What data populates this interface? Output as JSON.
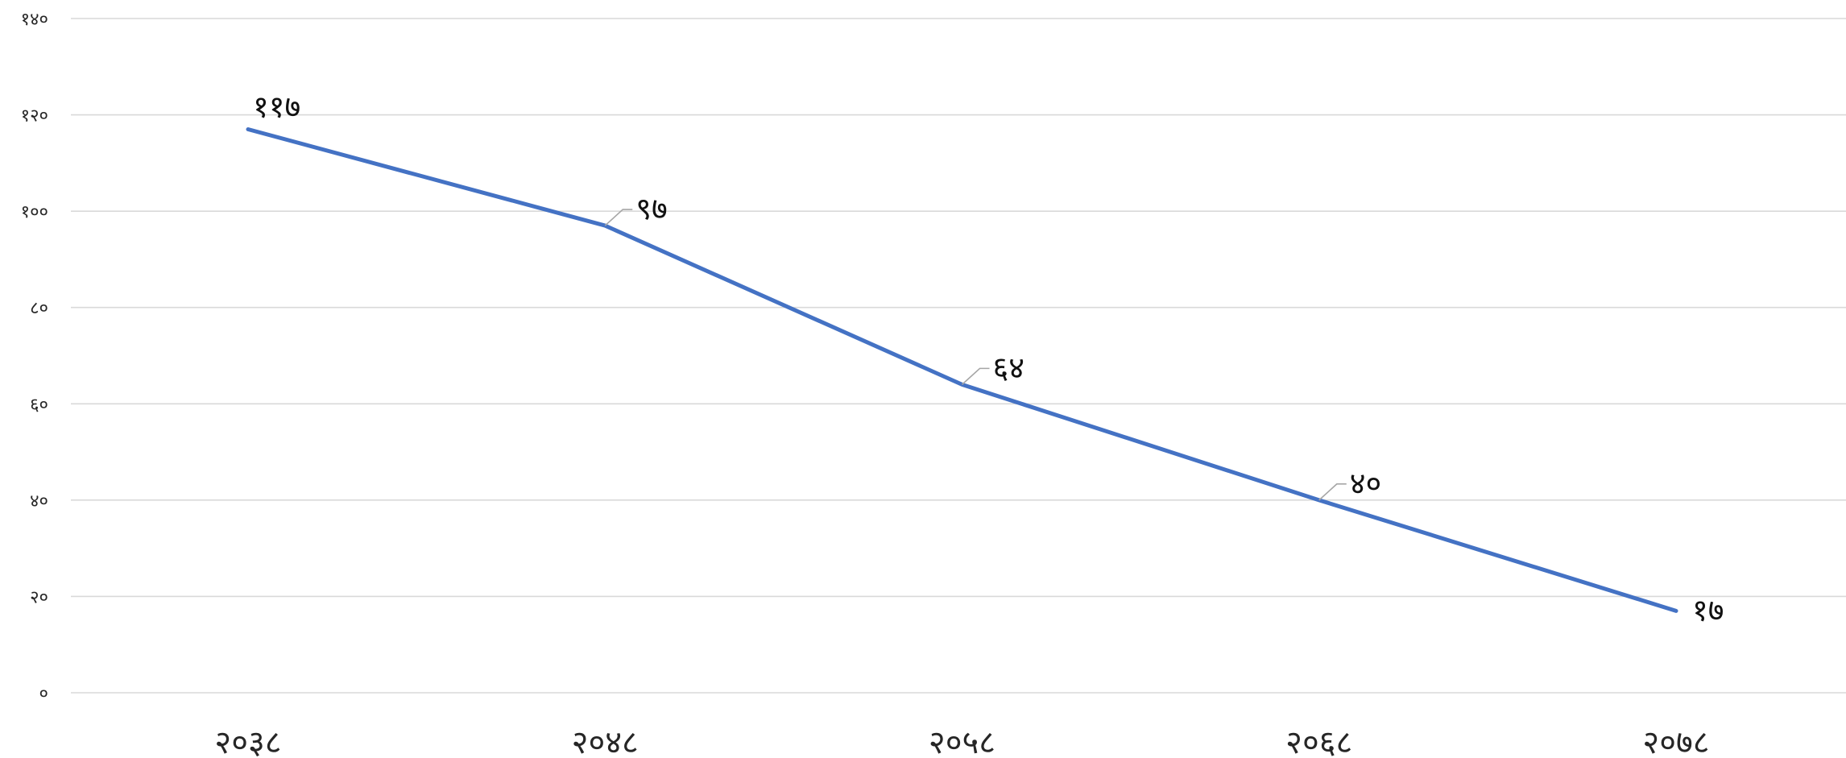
{
  "chart_data": {
    "type": "line",
    "categories": [
      "२०३८",
      "२०४८",
      "२०५८",
      "२०६८",
      "२०७८"
    ],
    "x": [
      2038,
      2048,
      2058,
      2068,
      2078
    ],
    "series": [
      {
        "values": [
          117,
          97,
          64,
          40,
          17
        ],
        "color": "#4472c4"
      }
    ],
    "data_labels": [
      "११७",
      "९७",
      "६४",
      "४०",
      "१७"
    ],
    "y_ticks": [
      0,
      20,
      40,
      60,
      80,
      100,
      120,
      140
    ],
    "y_tick_labels": [
      "०",
      "२०",
      "४०",
      "६०",
      "८०",
      "१००",
      "१२०",
      "१४०"
    ],
    "ylim": [
      0,
      140
    ],
    "grid": true,
    "legend": "none",
    "title": "",
    "xlabel": "",
    "ylabel": ""
  }
}
